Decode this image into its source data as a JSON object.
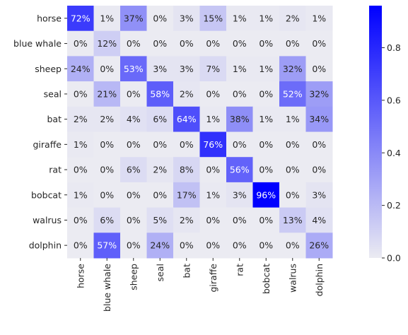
{
  "chart_data": {
    "type": "heatmap",
    "rows": [
      "horse",
      "blue whale",
      "sheep",
      "seal",
      "bat",
      "giraffe",
      "rat",
      "bobcat",
      "walrus",
      "dolphin"
    ],
    "columns": [
      "horse",
      "blue whale",
      "sheep",
      "seal",
      "bat",
      "giraffe",
      "rat",
      "bobcat",
      "walrus",
      "dolphin"
    ],
    "values": [
      [
        0.72,
        0.01,
        0.37,
        0.0,
        0.03,
        0.15,
        0.01,
        0.01,
        0.02,
        0.01
      ],
      [
        0.0,
        0.12,
        0.0,
        0.0,
        0.0,
        0.0,
        0.0,
        0.0,
        0.0,
        0.0
      ],
      [
        0.24,
        0.0,
        0.53,
        0.03,
        0.03,
        0.07,
        0.01,
        0.01,
        0.32,
        0.0
      ],
      [
        0.0,
        0.21,
        0.0,
        0.58,
        0.02,
        0.0,
        0.0,
        0.0,
        0.52,
        0.32
      ],
      [
        0.02,
        0.02,
        0.04,
        0.06,
        0.64,
        0.01,
        0.38,
        0.01,
        0.01,
        0.34
      ],
      [
        0.01,
        0.0,
        0.0,
        0.0,
        0.0,
        0.76,
        0.0,
        0.0,
        0.0,
        0.0
      ],
      [
        0.0,
        0.0,
        0.06,
        0.02,
        0.08,
        0.0,
        0.56,
        0.0,
        0.0,
        0.0
      ],
      [
        0.01,
        0.0,
        0.0,
        0.0,
        0.17,
        0.01,
        0.03,
        0.96,
        0.0,
        0.03
      ],
      [
        0.0,
        0.06,
        0.0,
        0.05,
        0.02,
        0.0,
        0.0,
        0.0,
        0.13,
        0.04
      ],
      [
        0.0,
        0.57,
        0.0,
        0.24,
        0.0,
        0.0,
        0.0,
        0.0,
        0.0,
        0.26
      ]
    ],
    "labels": [
      [
        "72%",
        "1%",
        "37%",
        "0%",
        "3%",
        "15%",
        "1%",
        "1%",
        "2%",
        "1%"
      ],
      [
        "0%",
        "12%",
        "0%",
        "0%",
        "0%",
        "0%",
        "0%",
        "0%",
        "0%",
        "0%"
      ],
      [
        "24%",
        "0%",
        "53%",
        "3%",
        "3%",
        "7%",
        "1%",
        "1%",
        "32%",
        "0%"
      ],
      [
        "0%",
        "21%",
        "0%",
        "58%",
        "2%",
        "0%",
        "0%",
        "0%",
        "52%",
        "32%"
      ],
      [
        "2%",
        "2%",
        "4%",
        "6%",
        "64%",
        "1%",
        "38%",
        "1%",
        "1%",
        "34%"
      ],
      [
        "1%",
        "0%",
        "0%",
        "0%",
        "0%",
        "76%",
        "0%",
        "0%",
        "0%",
        "0%"
      ],
      [
        "0%",
        "0%",
        "6%",
        "2%",
        "8%",
        "0%",
        "56%",
        "0%",
        "0%",
        "0%"
      ],
      [
        "1%",
        "0%",
        "0%",
        "0%",
        "17%",
        "1%",
        "3%",
        "96%",
        "0%",
        "3%"
      ],
      [
        "0%",
        "6%",
        "0%",
        "5%",
        "2%",
        "0%",
        "0%",
        "0%",
        "13%",
        "4%"
      ],
      [
        "0%",
        "57%",
        "0%",
        "24%",
        "0%",
        "0%",
        "0%",
        "0%",
        "0%",
        "26%"
      ]
    ],
    "colorbar": {
      "min": 0.0,
      "max": 0.96,
      "ticks": [
        "0.0",
        "0.2",
        "0.4",
        "0.6",
        "0.8"
      ],
      "tick_values": [
        0.0,
        0.2,
        0.4,
        0.6,
        0.8
      ],
      "low_color": "#ebebf2",
      "high_color": "#0000ff"
    },
    "title": "",
    "xlabel": "",
    "ylabel": "",
    "text_dark_color": "#262626",
    "text_light_color": "#ffffff"
  }
}
